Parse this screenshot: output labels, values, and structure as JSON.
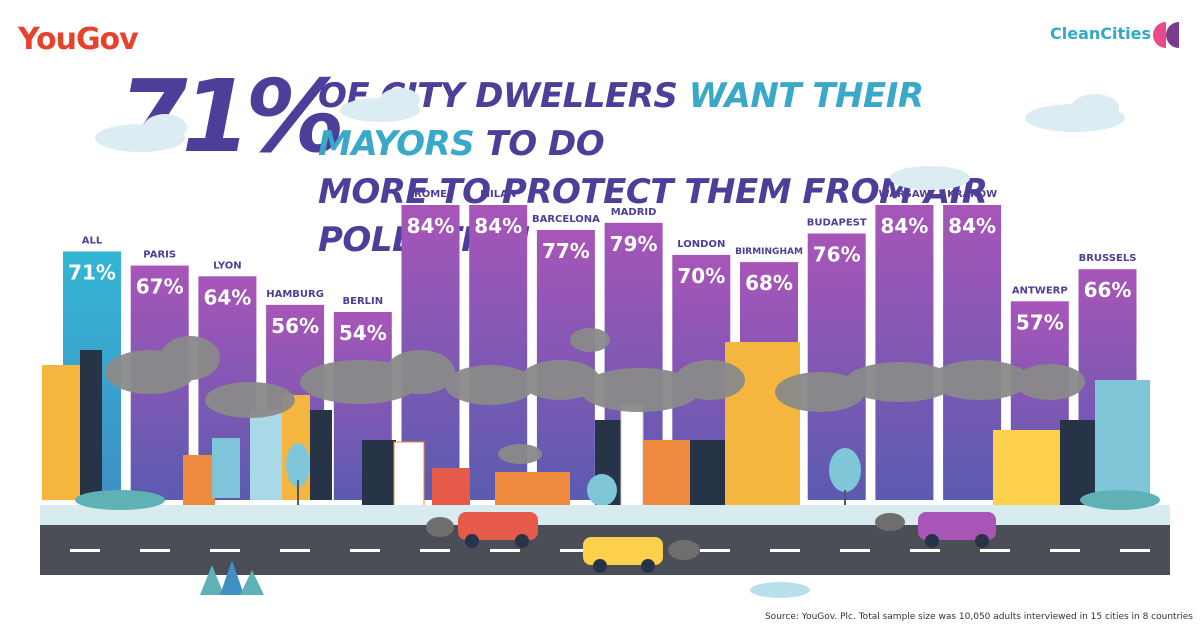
{
  "brand": {
    "left": "YouGov",
    "right": "CleanCities"
  },
  "headline": {
    "big_number": "71%",
    "line1": [
      "OF CITY DWELLERS ",
      "WANT THEIR MAYORS ",
      "TO DO"
    ],
    "line2": "MORE TO PROTECT THEM FROM AIR POLLUTION"
  },
  "source": "Source: YouGov. Plc. Total sample size was 10,050 adults interviewed in 15 cities in 8 countries",
  "colors": {
    "accent": "#4d3e99",
    "highlight": "#3aa8c9",
    "yougov": "#e8412c",
    "bar_all": "#2fb0cf",
    "bar_city": "#9b56b8"
  },
  "chart_data": {
    "type": "bar",
    "title": "71% OF CITY DWELLERS WANT THEIR MAYORS TO DO MORE TO PROTECT THEM FROM AIR POLLUTION",
    "categories": [
      "ALL",
      "PARIS",
      "LYON",
      "HAMBURG",
      "BERLIN",
      "ROME",
      "MILAN",
      "BARCELONA",
      "MADRID",
      "LONDON",
      "BIRMINGHAM",
      "BUDAPEST",
      "WARSAW",
      "KRAKOW",
      "ANTWERP",
      "BRUSSELS"
    ],
    "values": [
      71,
      67,
      64,
      56,
      54,
      84,
      84,
      77,
      79,
      70,
      68,
      76,
      84,
      84,
      57,
      66
    ],
    "value_labels": [
      "71%",
      "67%",
      "64%",
      "56%",
      "54%",
      "84%",
      "84%",
      "77%",
      "79%",
      "70%",
      "68%",
      "76%",
      "84%",
      "84%",
      "57%",
      "66%"
    ],
    "unit": "%"
  }
}
